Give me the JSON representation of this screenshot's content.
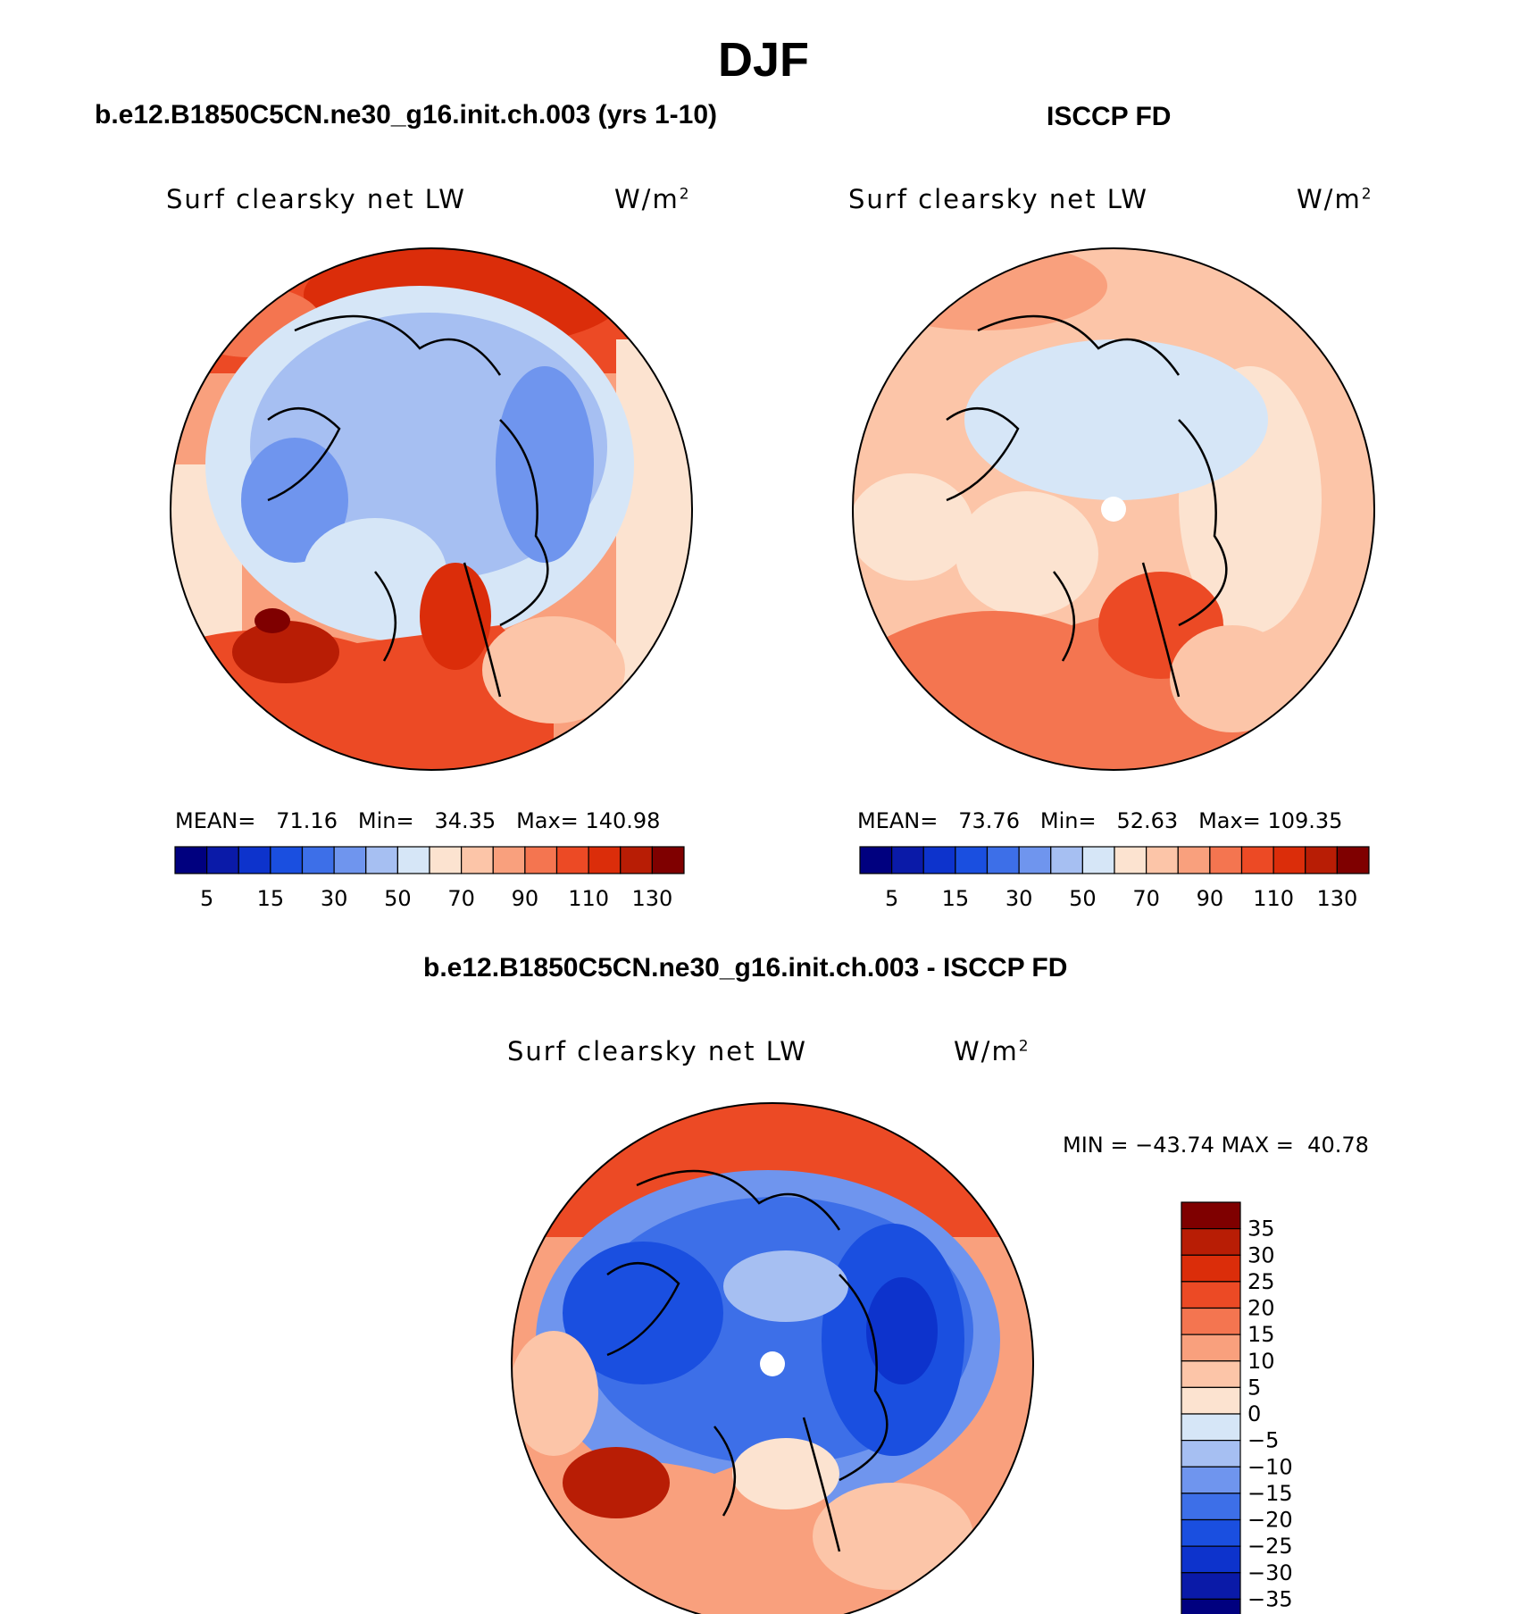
{
  "title": "DJF",
  "panels": [
    {
      "id": "model",
      "title": "b.e12.B1850C5CN.ne30_g16.init.ch.003 (yrs 1-10)",
      "variable": "Surf clearsky net LW",
      "units": "W/m",
      "units_exp": "2",
      "stats": {
        "mean_label": "MEAN=",
        "mean": "71.16",
        "min_label": "Min=",
        "min": "34.35",
        "max_label": "Max=",
        "max": "140.98"
      }
    },
    {
      "id": "obs",
      "title": "ISCCP FD",
      "variable": "Surf clearsky net LW",
      "units": "W/m",
      "units_exp": "2",
      "stats": {
        "mean_label": "MEAN=",
        "mean": "73.76",
        "min_label": "Min=",
        "min": "52.63",
        "max_label": "Max=",
        "max": "109.35"
      }
    },
    {
      "id": "diff",
      "title": "b.e12.B1850C5CN.ne30_g16.init.ch.003 - ISCCP FD",
      "variable": "Surf clearsky net LW",
      "units": "W/m",
      "units_exp": "2",
      "stats": {
        "min_label": "MIN =",
        "min": "−43.74",
        "max_label": "MAX =",
        "max": "40.78"
      }
    }
  ],
  "chart_data": [
    {
      "type": "heatmap",
      "projection": "north polar stereographic",
      "title": "b.e12.B1850C5CN.ne30_g16.init.ch.003 (yrs 1-10)",
      "colorbar": {
        "levels": [
          5,
          15,
          30,
          50,
          70,
          90,
          110,
          130
        ],
        "colors": [
          "#00007f",
          "#0a1aa8",
          "#0d33cc",
          "#1a4fe0",
          "#3d6fe8",
          "#6f95ee",
          "#a6bff2",
          "#d6e6f7",
          "#fce3d0",
          "#fcc5a8",
          "#f9a07d",
          "#f47550",
          "#ec4a25",
          "#db2d0a",
          "#b81d05",
          "#7f0000"
        ]
      }
    },
    {
      "type": "heatmap",
      "projection": "north polar stereographic",
      "title": "ISCCP FD",
      "colorbar": {
        "levels": [
          5,
          15,
          30,
          50,
          70,
          90,
          110,
          130
        ],
        "colors": [
          "#00007f",
          "#0a1aa8",
          "#0d33cc",
          "#1a4fe0",
          "#3d6fe8",
          "#6f95ee",
          "#a6bff2",
          "#d6e6f7",
          "#fce3d0",
          "#fcc5a8",
          "#f9a07d",
          "#f47550",
          "#ec4a25",
          "#db2d0a",
          "#b81d05",
          "#7f0000"
        ]
      }
    },
    {
      "type": "heatmap",
      "projection": "north polar stereographic",
      "title": "b.e12.B1850C5CN.ne30_g16.init.ch.003 - ISCCP FD",
      "colorbar": {
        "levels": [
          "35",
          "30",
          "25",
          "20",
          "15",
          "10",
          "5",
          "0",
          "−5",
          "−10",
          "−15",
          "−20",
          "−25",
          "−30",
          "−35"
        ],
        "colors": [
          "#7f0000",
          "#b81d05",
          "#db2d0a",
          "#ec4a25",
          "#f47550",
          "#f9a07d",
          "#fcc5a8",
          "#fce3d0",
          "#d6e6f7",
          "#a6bff2",
          "#6f95ee",
          "#3d6fe8",
          "#1a4fe0",
          "#0d33cc",
          "#0a1aa8",
          "#00007f"
        ]
      }
    }
  ]
}
